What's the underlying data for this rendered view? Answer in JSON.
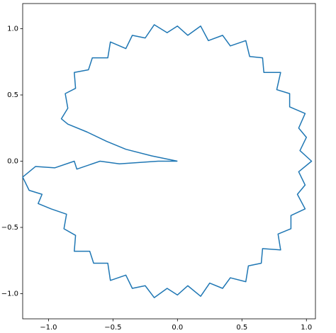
{
  "chart_data": {
    "type": "line",
    "color": "#1f77b4",
    "x": [
      0,
      -0.15,
      -0.3,
      -0.45,
      -0.6,
      -0.78,
      -0.8,
      -0.95,
      -1.1,
      -1.2,
      -1.15,
      -1.05,
      -1.08,
      -0.98,
      -0.86,
      -0.88,
      -0.79,
      -0.8,
      -0.68,
      -0.65,
      -0.54,
      -0.52,
      -0.4,
      -0.35,
      -0.25,
      -0.18,
      -0.08,
      0,
      0.08,
      0.18,
      0.25,
      0.35,
      0.41,
      0.53,
      0.55,
      0.65,
      0.66,
      0.8,
      0.78,
      0.88,
      0.88,
      0.99,
      0.93,
      0.99,
      0.94,
      1.04,
      0.95,
      1.0,
      0.94,
      0.99,
      0.87,
      0.87,
      0.77,
      0.8,
      0.67,
      0.66,
      0.56,
      0.53,
      0.41,
      0.35,
      0.24,
      0.18,
      0.08,
      0,
      -0.08,
      -0.18,
      -0.25,
      -0.35,
      -0.4,
      -0.52,
      -0.54,
      -0.66,
      -0.69,
      -0.8,
      -0.79,
      -0.87,
      -0.85,
      -0.9,
      -0.85,
      -0.7,
      -0.55,
      -0.4,
      -0.2,
      0
    ],
    "values": [
      0,
      0.0,
      -0.01,
      -0.02,
      0.0,
      -0.06,
      0.0,
      -0.05,
      -0.04,
      -0.12,
      -0.22,
      -0.25,
      -0.32,
      -0.36,
      -0.4,
      -0.51,
      -0.56,
      -0.68,
      -0.68,
      -0.77,
      -0.77,
      -0.9,
      -0.86,
      -0.96,
      -0.94,
      -1.03,
      -0.96,
      -1.01,
      -0.94,
      -1.02,
      -0.92,
      -0.96,
      -0.88,
      -0.91,
      -0.79,
      -0.77,
      -0.66,
      -0.67,
      -0.55,
      -0.51,
      -0.41,
      -0.36,
      -0.25,
      -0.18,
      -0.08,
      0,
      0.08,
      0.18,
      0.25,
      0.36,
      0.41,
      0.51,
      0.54,
      0.67,
      0.67,
      0.78,
      0.79,
      0.91,
      0.87,
      0.95,
      0.91,
      1.02,
      0.95,
      1.02,
      0.97,
      1.03,
      0.93,
      0.95,
      0.85,
      0.9,
      0.78,
      0.78,
      0.69,
      0.67,
      0.55,
      0.51,
      0.4,
      0.32,
      0.28,
      0.22,
      0.15,
      0.09,
      0.04,
      0
    ],
    "xlim": [
      -1.2,
      1.07
    ],
    "ylim": [
      -1.19,
      1.19
    ],
    "xticks": [
      {
        "value": -1.0,
        "label": "−1.0"
      },
      {
        "value": -0.5,
        "label": "−0.5"
      },
      {
        "value": 0.0,
        "label": "0.0"
      },
      {
        "value": 0.5,
        "label": "0.5"
      },
      {
        "value": 1.0,
        "label": "1.0"
      }
    ],
    "yticks": [
      {
        "value": -1.0,
        "label": "−1.0"
      },
      {
        "value": -0.5,
        "label": "−0.5"
      },
      {
        "value": 0.0,
        "label": "0.0"
      },
      {
        "value": 0.5,
        "label": "0.5"
      },
      {
        "value": 1.0,
        "label": "1.0"
      }
    ]
  }
}
